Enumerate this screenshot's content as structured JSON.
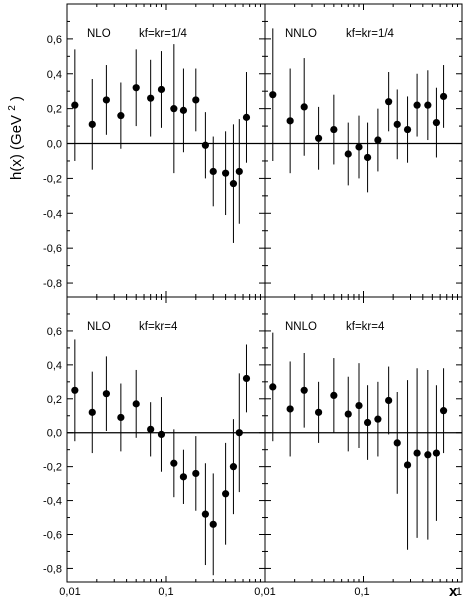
{
  "figure": {
    "ylabel_base": "h(x) (GeV",
    "ylabel_sup": "2",
    "ylabel_close": ")",
    "xlabel": "x"
  },
  "axes": {
    "y_tick_labels": [
      "0,6",
      "0,4",
      "0,2",
      "0,0",
      "-0,2",
      "-0,4",
      "-0,6",
      "-0,8"
    ],
    "x_tick_labels": [
      "0,01",
      "0,1",
      "0,01",
      "0,1",
      "1"
    ]
  },
  "chart_data": [
    {
      "type": "scatter",
      "order": "NLO",
      "scale": "kf=kr=1/4",
      "x_scale": "log",
      "xlim": [
        0.01,
        1
      ],
      "ylim": [
        -0.88,
        0.8
      ],
      "grid": false,
      "zero_line": true,
      "points": [
        {
          "x": 0.012,
          "y": 0.22,
          "err": 0.32
        },
        {
          "x": 0.018,
          "y": 0.11,
          "err": 0.26
        },
        {
          "x": 0.025,
          "y": 0.25,
          "err": 0.2
        },
        {
          "x": 0.035,
          "y": 0.16,
          "err": 0.19
        },
        {
          "x": 0.05,
          "y": 0.32,
          "err": 0.22
        },
        {
          "x": 0.07,
          "y": 0.26,
          "err": 0.22
        },
        {
          "x": 0.09,
          "y": 0.31,
          "err": 0.22
        },
        {
          "x": 0.12,
          "y": 0.2,
          "err": 0.37
        },
        {
          "x": 0.15,
          "y": 0.19,
          "err": 0.24
        },
        {
          "x": 0.2,
          "y": 0.25,
          "err": 0.18
        },
        {
          "x": 0.25,
          "y": -0.01,
          "err": 0.19
        },
        {
          "x": 0.3,
          "y": -0.16,
          "err": 0.2
        },
        {
          "x": 0.4,
          "y": -0.17,
          "err": 0.24
        },
        {
          "x": 0.48,
          "y": -0.23,
          "err": 0.34
        },
        {
          "x": 0.55,
          "y": -0.16,
          "err": 0.3
        },
        {
          "x": 0.65,
          "y": 0.15,
          "err": 0.26
        }
      ]
    },
    {
      "type": "scatter",
      "order": "NNLO",
      "scale": "kf=kr=1/4",
      "x_scale": "log",
      "xlim": [
        0.01,
        1
      ],
      "ylim": [
        -0.88,
        0.8
      ],
      "grid": false,
      "zero_line": true,
      "points": [
        {
          "x": 0.012,
          "y": 0.28,
          "err": 0.38
        },
        {
          "x": 0.018,
          "y": 0.13,
          "err": 0.3
        },
        {
          "x": 0.025,
          "y": 0.21,
          "err": 0.28
        },
        {
          "x": 0.035,
          "y": 0.03,
          "err": 0.18
        },
        {
          "x": 0.05,
          "y": 0.08,
          "err": 0.2
        },
        {
          "x": 0.07,
          "y": -0.06,
          "err": 0.18
        },
        {
          "x": 0.09,
          "y": -0.02,
          "err": 0.18
        },
        {
          "x": 0.11,
          "y": -0.08,
          "err": 0.2
        },
        {
          "x": 0.14,
          "y": 0.02,
          "err": 0.18
        },
        {
          "x": 0.18,
          "y": 0.24,
          "err": 0.17
        },
        {
          "x": 0.22,
          "y": 0.11,
          "err": 0.2
        },
        {
          "x": 0.28,
          "y": 0.08,
          "err": 0.19
        },
        {
          "x": 0.35,
          "y": 0.22,
          "err": 0.18
        },
        {
          "x": 0.45,
          "y": 0.22,
          "err": 0.2
        },
        {
          "x": 0.55,
          "y": 0.12,
          "err": 0.2
        },
        {
          "x": 0.65,
          "y": 0.27,
          "err": 0.18
        }
      ]
    },
    {
      "type": "scatter",
      "order": "NLO",
      "scale": "kf=kr=4",
      "x_scale": "log",
      "xlim": [
        0.01,
        1
      ],
      "ylim": [
        -0.88,
        0.8
      ],
      "grid": false,
      "zero_line": true,
      "points": [
        {
          "x": 0.012,
          "y": 0.25,
          "err": 0.3
        },
        {
          "x": 0.018,
          "y": 0.12,
          "err": 0.24
        },
        {
          "x": 0.025,
          "y": 0.23,
          "err": 0.22
        },
        {
          "x": 0.035,
          "y": 0.09,
          "err": 0.2
        },
        {
          "x": 0.05,
          "y": 0.17,
          "err": 0.2
        },
        {
          "x": 0.07,
          "y": 0.02,
          "err": 0.16
        },
        {
          "x": 0.09,
          "y": -0.01,
          "err": 0.22
        },
        {
          "x": 0.12,
          "y": -0.18,
          "err": 0.2
        },
        {
          "x": 0.15,
          "y": -0.26,
          "err": 0.16
        },
        {
          "x": 0.2,
          "y": -0.24,
          "err": 0.22
        },
        {
          "x": 0.25,
          "y": -0.48,
          "err": 0.3
        },
        {
          "x": 0.3,
          "y": -0.54,
          "err": 0.3
        },
        {
          "x": 0.4,
          "y": -0.36,
          "err": 0.3
        },
        {
          "x": 0.48,
          "y": -0.2,
          "err": 0.28
        },
        {
          "x": 0.55,
          "y": 0.0,
          "err": 0.35
        },
        {
          "x": 0.65,
          "y": 0.32,
          "err": 0.2
        }
      ]
    },
    {
      "type": "scatter",
      "order": "NNLO",
      "scale": "kf=kr=4",
      "x_scale": "log",
      "xlim": [
        0.01,
        1
      ],
      "ylim": [
        -0.88,
        0.8
      ],
      "grid": false,
      "zero_line": true,
      "points": [
        {
          "x": 0.012,
          "y": 0.27,
          "err": 0.32
        },
        {
          "x": 0.018,
          "y": 0.14,
          "err": 0.28
        },
        {
          "x": 0.025,
          "y": 0.25,
          "err": 0.22
        },
        {
          "x": 0.035,
          "y": 0.12,
          "err": 0.18
        },
        {
          "x": 0.05,
          "y": 0.22,
          "err": 0.22
        },
        {
          "x": 0.07,
          "y": 0.11,
          "err": 0.22
        },
        {
          "x": 0.09,
          "y": 0.16,
          "err": 0.25
        },
        {
          "x": 0.11,
          "y": 0.06,
          "err": 0.22
        },
        {
          "x": 0.14,
          "y": 0.08,
          "err": 0.22
        },
        {
          "x": 0.18,
          "y": 0.19,
          "err": 0.2
        },
        {
          "x": 0.22,
          "y": -0.06,
          "err": 0.3
        },
        {
          "x": 0.28,
          "y": -0.19,
          "err": 0.5
        },
        {
          "x": 0.35,
          "y": -0.12,
          "err": 0.5
        },
        {
          "x": 0.45,
          "y": -0.13,
          "err": 0.5
        },
        {
          "x": 0.55,
          "y": -0.12,
          "err": 0.4
        },
        {
          "x": 0.65,
          "y": 0.13,
          "err": 0.25
        }
      ]
    }
  ]
}
